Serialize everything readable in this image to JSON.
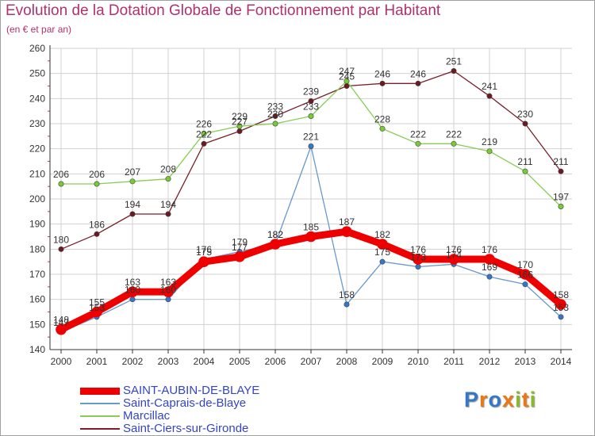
{
  "title": "Evolution de la Dotation Globale de Fonctionnement par Habitant",
  "subtitle": "(en € et par an)",
  "logo_text": "Proxiti",
  "colors": {
    "title": "#b03070",
    "grid": "#d0d0d0",
    "axis": "#333333",
    "tick_text": "#333333",
    "legend_text": "#3344cc"
  },
  "chart_data": {
    "type": "line",
    "x": [
      "2000",
      "2001",
      "2002",
      "2003",
      "2004",
      "2005",
      "2006",
      "2007",
      "2008",
      "2009",
      "2010",
      "2011",
      "2012",
      "2013",
      "2014"
    ],
    "ylim": [
      140,
      260
    ],
    "yticks": [
      140,
      150,
      160,
      170,
      180,
      190,
      200,
      210,
      220,
      230,
      240,
      250,
      260
    ],
    "grid": true,
    "legend_position": "bottom-left",
    "series": [
      {
        "name": "Saint-Ciers-sur-Gironde",
        "color": "#7a1f2a",
        "marker": "#6b1a22",
        "width": 1.3,
        "values": [
          180,
          186,
          194,
          194,
          222,
          227,
          233,
          239,
          245,
          246,
          246,
          251,
          241,
          230,
          211
        ],
        "labels": [
          "180",
          "186",
          "194",
          "194",
          "222",
          "227",
          "233",
          "239",
          "245",
          "246",
          "246",
          "251",
          "241",
          "230",
          "211"
        ]
      },
      {
        "name": "Marcillac",
        "color": "#88cc55",
        "marker": "#77cc33",
        "width": 1.3,
        "values": [
          206,
          206,
          207,
          208,
          226,
          229,
          230,
          233,
          247,
          228,
          222,
          222,
          219,
          211,
          197
        ],
        "labels": [
          "206",
          "206",
          "207",
          "208",
          "226",
          "229",
          "230",
          "233",
          "247",
          "228",
          "222",
          "222",
          "219",
          "211",
          "197"
        ]
      },
      {
        "name": "Saint-Caprais-de-Blaye",
        "color": "#6699cc",
        "marker": "#3377cc",
        "width": 1.3,
        "values": [
          147,
          153,
          160,
          160,
          176,
          179,
          182,
          221,
          158,
          175,
          173,
          174,
          169,
          166,
          153
        ],
        "labels": [
          "147",
          "153",
          "160",
          "160",
          "176",
          "179",
          "182",
          "221",
          "158",
          "175",
          "173",
          "174",
          "169",
          "166",
          "153"
        ]
      },
      {
        "name": "SAINT-AUBIN-DE-BLAYE",
        "color": "#ee0000",
        "marker": "#ee0000",
        "width": 9,
        "values": [
          148,
          155,
          163,
          163,
          175,
          177,
          182,
          185,
          187,
          182,
          176,
          176,
          176,
          170,
          158
        ],
        "labels": [
          "148",
          "155",
          "163",
          "163",
          "175",
          "177",
          "182",
          "185",
          "187",
          "182",
          "176",
          "176",
          "176",
          "170",
          "158"
        ]
      }
    ],
    "legend_order": [
      "SAINT-AUBIN-DE-BLAYE",
      "Saint-Caprais-de-Blaye",
      "Marcillac",
      "Saint-Ciers-sur-Gironde"
    ]
  }
}
